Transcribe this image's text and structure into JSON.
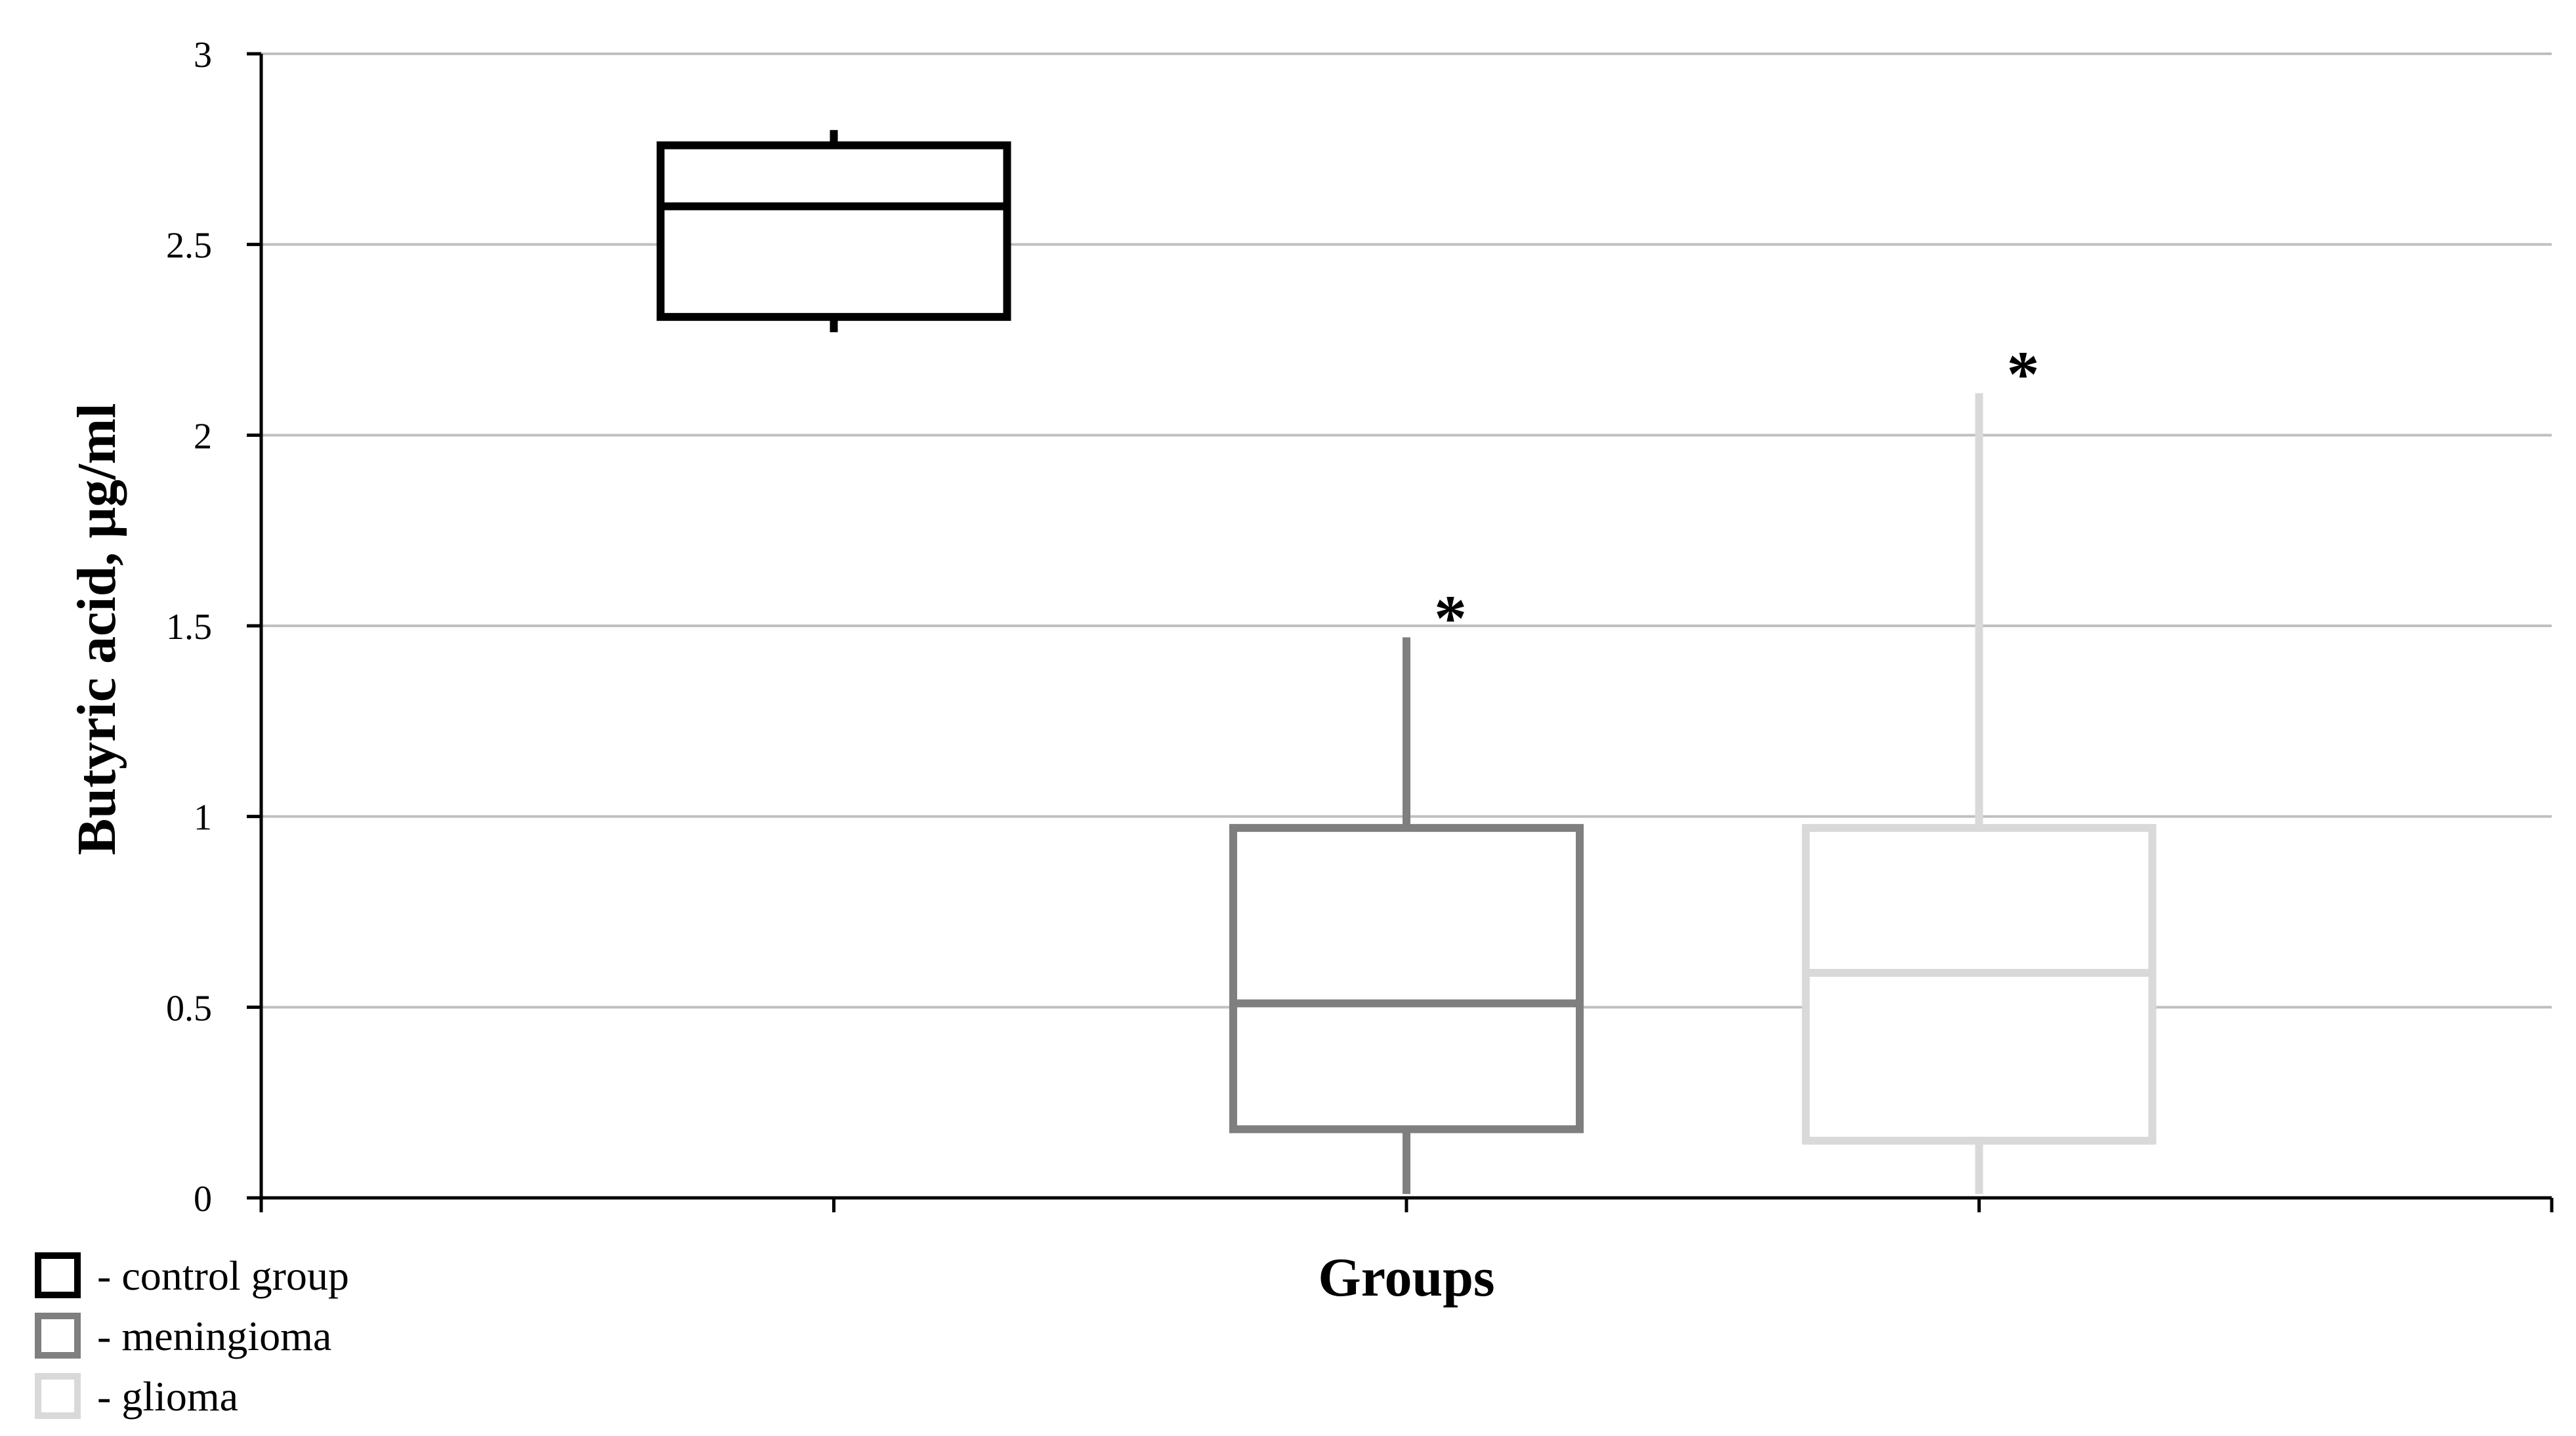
{
  "chart_data": {
    "type": "box",
    "ylabel": "Butyric acid, μg/ml",
    "xlabel": "Groups",
    "ylim": [
      0,
      3
    ],
    "yticks": [
      {
        "value": 0,
        "label": "0"
      },
      {
        "value": 0.5,
        "label": "0.5"
      },
      {
        "value": 1,
        "label": "1"
      },
      {
        "value": 1.5,
        "label": "1.5"
      },
      {
        "value": 2,
        "label": "2"
      },
      {
        "value": 2.5,
        "label": "2.5"
      },
      {
        "value": 3,
        "label": "3"
      }
    ],
    "grid": true,
    "legend_position": "bottom-left",
    "series": [
      {
        "name": "- control group",
        "color": "#000000",
        "min": 2.27,
        "q1": 2.31,
        "median": 2.6,
        "q3": 2.76,
        "max": 2.8,
        "marker": ""
      },
      {
        "name": "- meningioma",
        "color": "#7f7f7f",
        "min": 0.01,
        "q1": 0.18,
        "median": 0.51,
        "q3": 0.97,
        "max": 1.47,
        "marker": "*"
      },
      {
        "name": "- glioma",
        "color": "#d9d9d9",
        "min": 0.01,
        "q1": 0.15,
        "median": 0.59,
        "q3": 0.97,
        "max": 2.11,
        "marker": "*"
      }
    ]
  },
  "colors": {
    "grid": "#bfbfbf",
    "axis": "#000000"
  }
}
